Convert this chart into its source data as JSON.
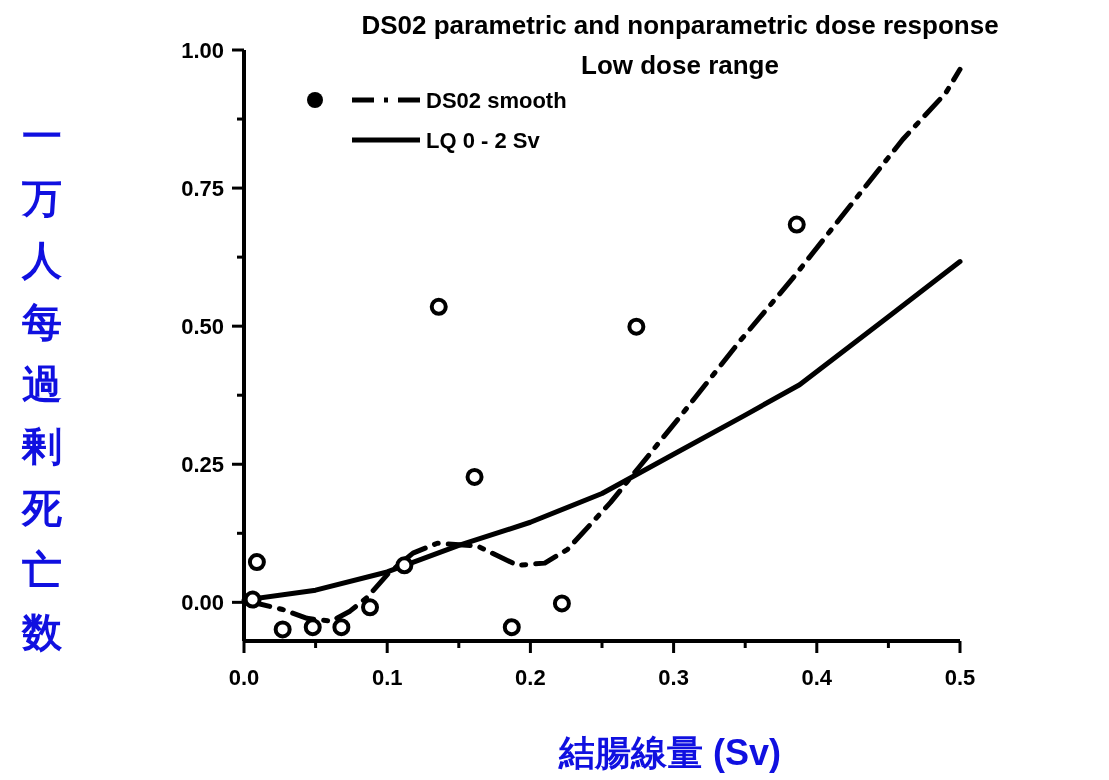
{
  "chart_data": {
    "type": "scatter",
    "title": "DS02 parametric and nonparametric dose response",
    "subtitle": "Low dose range",
    "xlabel": "結腸線量 (Sv)",
    "ylabel": "一万人每過剰死亡数",
    "xlim": [
      0,
      0.5
    ],
    "ylim": [
      -0.07,
      1.0
    ],
    "xticks": [
      {
        "value": 0,
        "label": "0.0"
      },
      {
        "value": 0.05,
        "label": null
      },
      {
        "value": 0.1,
        "label": "0.1"
      },
      {
        "value": 0.15,
        "label": null
      },
      {
        "value": 0.2,
        "label": "0.2"
      },
      {
        "value": 0.25,
        "label": null
      },
      {
        "value": 0.3,
        "label": "0.3"
      },
      {
        "value": 0.35,
        "label": null
      },
      {
        "value": 0.4,
        "label": "0.4"
      },
      {
        "value": 0.45,
        "label": null
      },
      {
        "value": 0.5,
        "label": "0.5"
      }
    ],
    "yticks": [
      {
        "value": 0,
        "label": "0.00"
      },
      {
        "value": 0.125,
        "label": null
      },
      {
        "value": 0.25,
        "label": "0.25"
      },
      {
        "value": 0.375,
        "label": null
      },
      {
        "value": 0.5,
        "label": "0.50"
      },
      {
        "value": 0.625,
        "label": null
      },
      {
        "value": 0.75,
        "label": "0.75"
      },
      {
        "value": 0.875,
        "label": null
      },
      {
        "value": 1,
        "label": "1.00"
      }
    ],
    "grid": false,
    "legend": "top left",
    "series": [
      {
        "color": "#000000",
        "marker": "circle",
        "x": [
          0.006,
          0.009,
          0.027,
          0.048,
          0.068,
          0.088,
          0.112,
          0.136,
          0.161,
          0.187,
          0.222,
          0.274,
          0.386
        ],
        "values": [
          0.005,
          0.073,
          -0.049,
          -0.045,
          -0.045,
          -0.009,
          0.067,
          0.535,
          0.227,
          -0.045,
          -0.002,
          0.499,
          0.684
        ]
      },
      {
        "type": "line",
        "name": "DS02 smooth",
        "color": "#000000",
        "marker": "none",
        "line_style": "dashed",
        "x": [
          0.003,
          0.027,
          0.044,
          0.061,
          0.074,
          0.086,
          0.101,
          0.118,
          0.135,
          0.163,
          0.191,
          0.21,
          0.226,
          0.256,
          0.276,
          0.306,
          0.346,
          0.383,
          0.423,
          0.46,
          0.49,
          0.5
        ],
        "values": [
          0.002,
          -0.013,
          -0.029,
          -0.034,
          -0.016,
          0.009,
          0.053,
          0.089,
          0.107,
          0.102,
          0.067,
          0.071,
          0.096,
          0.181,
          0.245,
          0.341,
          0.472,
          0.586,
          0.717,
          0.838,
          0.922,
          0.965
        ]
      },
      {
        "type": "line",
        "name": "LQ 0 - 2 Sv",
        "color": "#000000",
        "marker": "none",
        "line_style": "solid",
        "x": [
          0,
          0.05,
          0.1,
          0.15,
          0.2,
          0.25,
          0.3,
          0.35,
          0.388,
          0.45,
          0.5
        ],
        "values": [
          0.004,
          0.022,
          0.055,
          0.103,
          0.145,
          0.197,
          0.268,
          0.339,
          0.394,
          0.517,
          0.617
        ]
      }
    ]
  }
}
